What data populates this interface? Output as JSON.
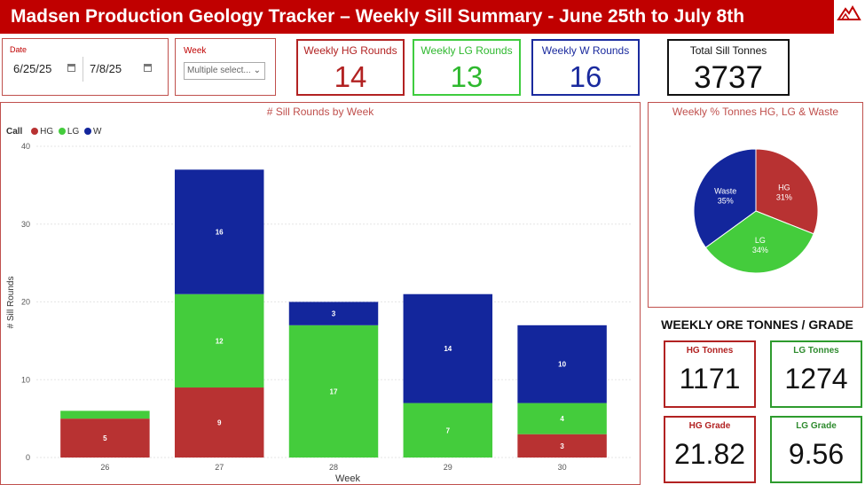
{
  "header": {
    "title": "Madsen Production Geology Tracker – Weekly Sill Summary - June 25th to July 8th"
  },
  "filters": {
    "date_label": "Date",
    "date_start": "6/25/25",
    "date_end": "7/8/25",
    "week_label": "Week",
    "week_value": "Multiple select..."
  },
  "kpis": {
    "hg_label": "Weekly HG Rounds",
    "hg_value": "14",
    "lg_label": "Weekly LG Rounds",
    "lg_value": "13",
    "w_label": "Weekly W Rounds",
    "w_value": "16",
    "total_label": "Total Sill Tonnes",
    "total_value": "3737"
  },
  "colors": {
    "hg": "#b83232",
    "lg": "#44cc3c",
    "w": "#13269c",
    "accent": "#c00000"
  },
  "bar_chart": {
    "title": "# Sill Rounds by Week",
    "legend_title": "Call",
    "legend": [
      "HG",
      "LG",
      "W"
    ]
  },
  "pie_chart": {
    "title": "Weekly % Tonnes HG, LG & Waste"
  },
  "ore": {
    "title": "WEEKLY ORE TONNES / GRADE",
    "hg_tonnes_label": "HG Tonnes",
    "hg_tonnes": "1171",
    "lg_tonnes_label": "LG Tonnes",
    "lg_tonnes": "1274",
    "hg_grade_label": "HG Grade",
    "hg_grade": "21.82",
    "lg_grade_label": "LG Grade",
    "lg_grade": "9.56"
  },
  "chart_data": [
    {
      "type": "bar",
      "title": "# Sill Rounds by Week",
      "xlabel": "Week",
      "ylabel": "# Sill Rounds",
      "categories": [
        "26",
        "27",
        "28",
        "29",
        "30"
      ],
      "ylim": [
        0,
        40
      ],
      "yticks": [
        0,
        10,
        20,
        30,
        40
      ],
      "stacked": true,
      "legend_placement": "top-left",
      "series": [
        {
          "name": "HG",
          "values": [
            5,
            9,
            0,
            0,
            3
          ],
          "labels": [
            "5",
            "9",
            "",
            "",
            "3"
          ]
        },
        {
          "name": "LG",
          "values": [
            1,
            12,
            17,
            7,
            4
          ],
          "labels": [
            "",
            "12",
            "17",
            "7",
            "4"
          ]
        },
        {
          "name": "W",
          "values": [
            0,
            16,
            3,
            14,
            10
          ],
          "labels": [
            "",
            "16",
            "3",
            "14",
            "10"
          ]
        }
      ]
    },
    {
      "type": "pie",
      "title": "Weekly % Tonnes HG, LG & Waste",
      "slices": [
        {
          "name": "HG",
          "value": 31,
          "label": "31%"
        },
        {
          "name": "LG",
          "value": 34,
          "label": "34%"
        },
        {
          "name": "Waste",
          "value": 35,
          "label": "35%"
        }
      ]
    }
  ]
}
